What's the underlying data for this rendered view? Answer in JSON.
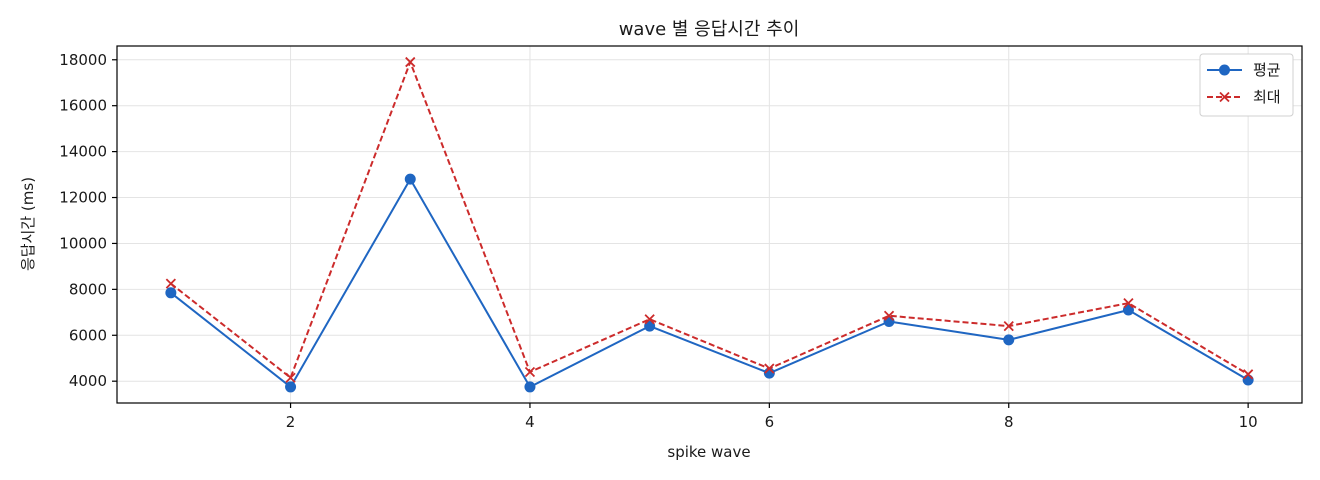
{
  "chart_data": {
    "type": "line",
    "title": "wave 별 응답시간 추이",
    "xlabel": "spike wave",
    "ylabel": "응답시간 (ms)",
    "x": [
      1,
      2,
      3,
      4,
      5,
      6,
      7,
      8,
      9,
      10
    ],
    "xlim": [
      0.55,
      10.45
    ],
    "ylim": [
      3050,
      18600
    ],
    "xticks": [
      2,
      4,
      6,
      8,
      10
    ],
    "yticks": [
      4000,
      6000,
      8000,
      10000,
      12000,
      14000,
      16000,
      18000
    ],
    "grid": true,
    "legend_position": "top-right",
    "series": [
      {
        "name": "평균",
        "values": [
          7850,
          3750,
          12800,
          3750,
          6400,
          4350,
          6600,
          5800,
          7100,
          4050
        ],
        "color": "#1f66c2",
        "line_style": "solid",
        "marker": "circle"
      },
      {
        "name": "최대",
        "values": [
          8250,
          4150,
          17900,
          4400,
          6700,
          4550,
          6850,
          6400,
          7400,
          4300
        ],
        "color": "#cc2b2b",
        "line_style": "dashed",
        "marker": "x"
      }
    ]
  }
}
